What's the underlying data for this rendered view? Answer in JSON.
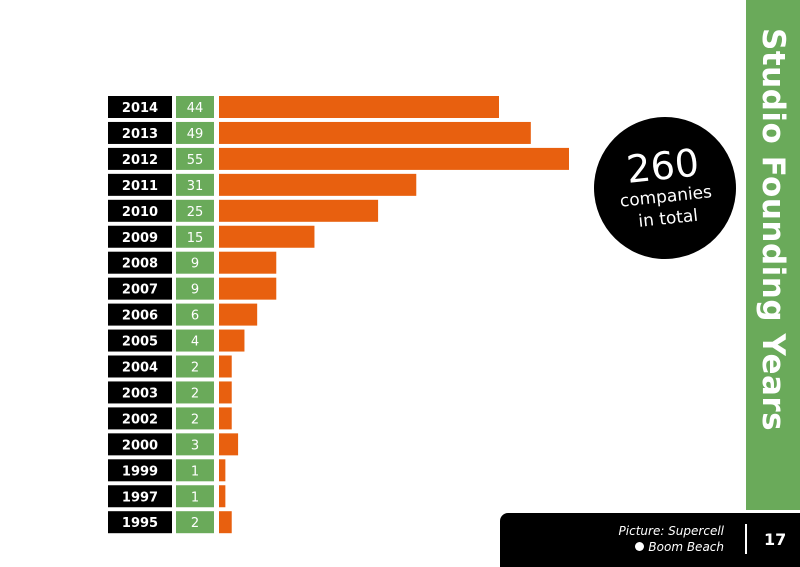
{
  "chart_data": {
    "type": "bar",
    "orientation": "horizontal",
    "categories": [
      "2014",
      "2013",
      "2012",
      "2011",
      "2010",
      "2009",
      "2008",
      "2007",
      "2006",
      "2005",
      "2004",
      "2003",
      "2002",
      "2000",
      "1999",
      "1997",
      "1995"
    ],
    "values": [
      44,
      49,
      55,
      31,
      25,
      15,
      9,
      9,
      6,
      4,
      2,
      2,
      2,
      3,
      1,
      1,
      2
    ],
    "title": "Studio Founding Years",
    "xlabel": "",
    "ylabel": "",
    "xlim": [
      0,
      55
    ],
    "grid": false,
    "colors": {
      "bar": "#e8600f",
      "year_label_bg": "#000000",
      "value_label_bg": "#6aaa5a"
    }
  },
  "summary": {
    "total": "260",
    "line1": "companies",
    "line2": "in total"
  },
  "footer": {
    "credit_line1": "Picture: Supercell",
    "credit_line2": "Boom Beach",
    "page_number": "17"
  },
  "colors": {
    "accent_green": "#6aaa5a",
    "accent_orange": "#e8600f",
    "dark": "#000000"
  }
}
